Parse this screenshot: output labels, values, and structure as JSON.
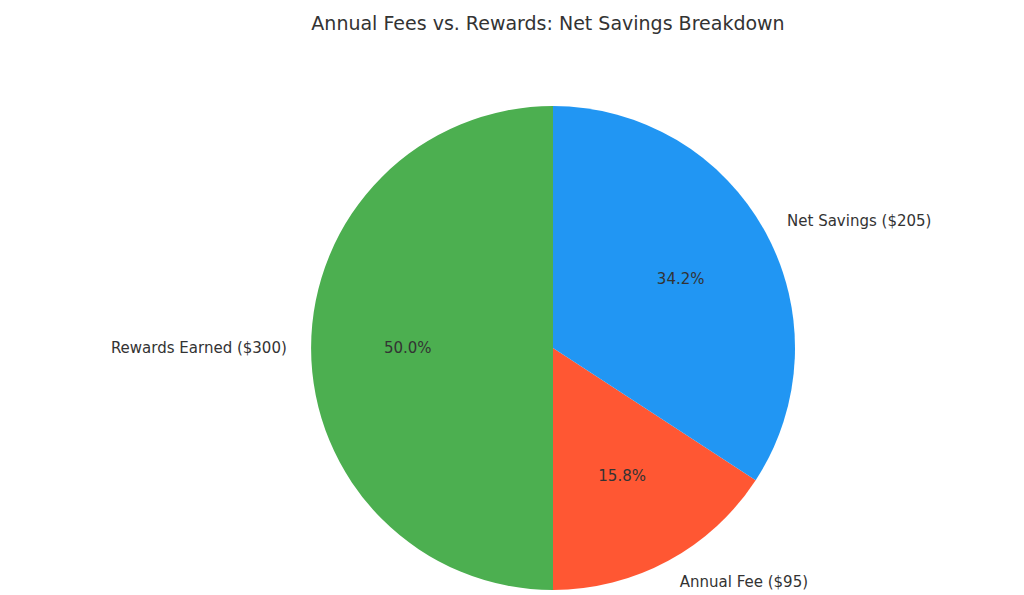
{
  "chart_data": {
    "type": "pie",
    "title": "Annual Fees vs. Rewards: Net Savings Breakdown",
    "categories": [
      "Rewards Earned ($300)",
      "Annual Fee ($95)",
      "Net Savings ($205)"
    ],
    "values": [
      50.0,
      15.8,
      34.2
    ],
    "value_labels": [
      "50.0%",
      "15.8%",
      "34.2%"
    ],
    "colors": [
      "#4caf50",
      "#ff5733",
      "#2196f3"
    ],
    "data_labels": true
  }
}
